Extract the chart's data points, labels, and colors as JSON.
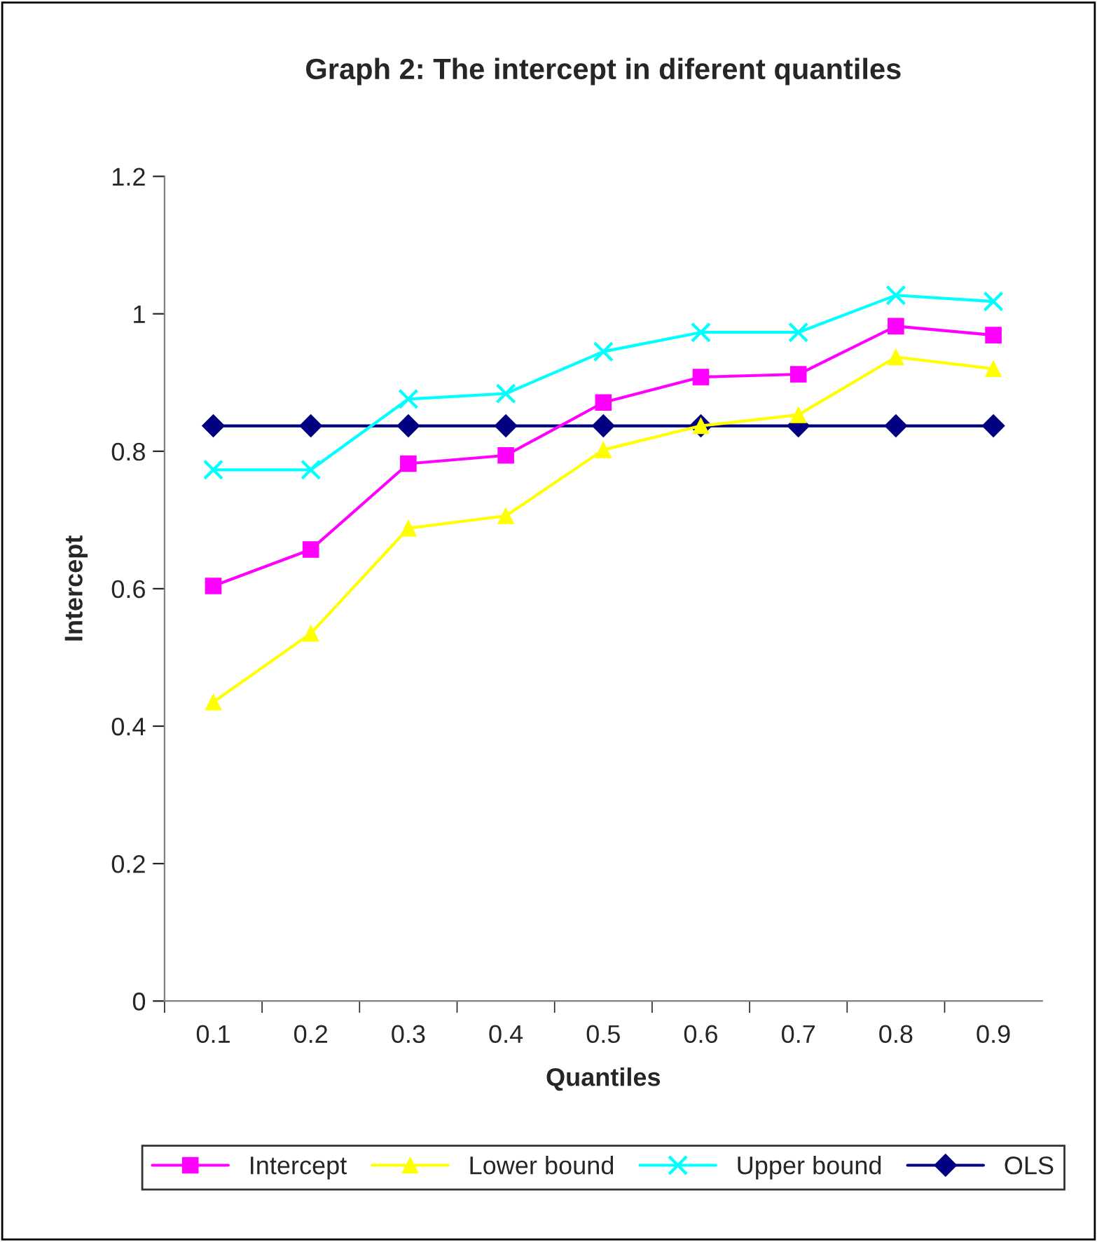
{
  "chart_data": {
    "type": "line",
    "title": "Graph 2: The intercept in diferent quantiles",
    "xlabel": "Quantiles",
    "ylabel": "Intercept",
    "categories": [
      "0.1",
      "0.2",
      "0.3",
      "0.4",
      "0.5",
      "0.6",
      "0.7",
      "0.8",
      "0.9"
    ],
    "series": [
      {
        "name": "Intercept",
        "color": "#ff00ff",
        "marker": "square",
        "values": [
          0.604,
          0.657,
          0.782,
          0.794,
          0.871,
          0.908,
          0.912,
          0.982,
          0.969
        ]
      },
      {
        "name": "Lower bound",
        "color": "#ffff00",
        "marker": "triangle",
        "values": [
          0.435,
          0.535,
          0.688,
          0.706,
          0.802,
          0.837,
          0.853,
          0.937,
          0.92
        ]
      },
      {
        "name": "Upper bound",
        "color": "#00ffff",
        "marker": "cross",
        "values": [
          0.773,
          0.773,
          0.876,
          0.884,
          0.945,
          0.973,
          0.973,
          1.027,
          1.018
        ]
      },
      {
        "name": "OLS",
        "color": "#000080",
        "marker": "diamond",
        "values": [
          0.837,
          0.837,
          0.837,
          0.837,
          0.837,
          0.837,
          0.837,
          0.837,
          0.837
        ]
      }
    ],
    "ylim": [
      0,
      1.2
    ],
    "yticks": [
      0,
      0.2,
      0.4,
      0.6,
      0.8,
      1,
      1.2
    ],
    "grid": false,
    "legend": "bottom",
    "line_style": "solid"
  }
}
